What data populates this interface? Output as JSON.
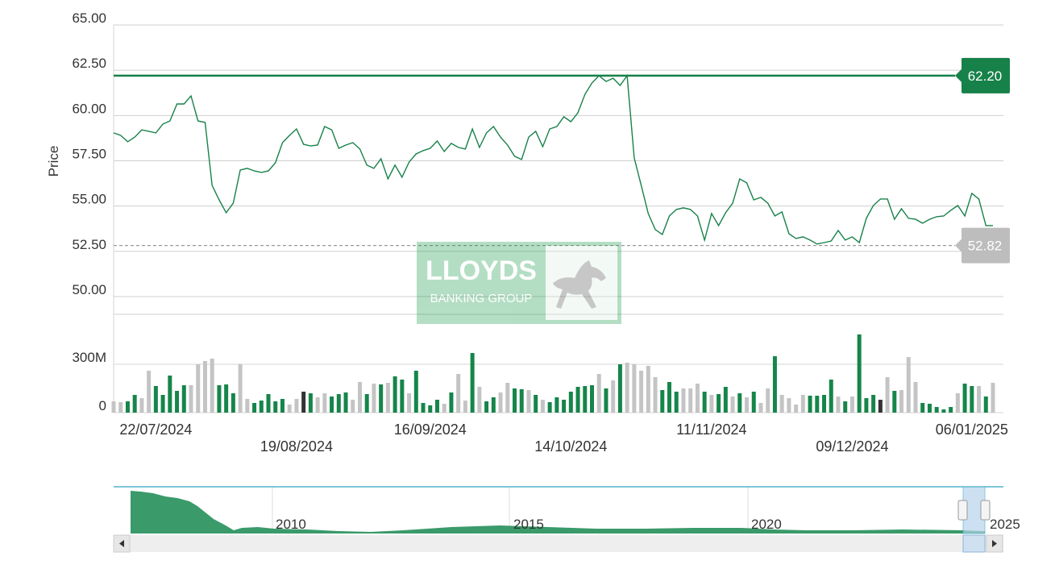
{
  "chart_data": {
    "type": "stock",
    "y_label": "Price",
    "categories": [
      null,
      null,
      null,
      null,
      null,
      null,
      "22/07/2024",
      null,
      null,
      null,
      null,
      null,
      null,
      null,
      null,
      null,
      null,
      null,
      null,
      null,
      null,
      null,
      null,
      null,
      null,
      null,
      "19/08/2024",
      null,
      null,
      null,
      null,
      null,
      null,
      null,
      null,
      null,
      null,
      null,
      null,
      null,
      null,
      null,
      null,
      null,
      null,
      "16/09/2024",
      null,
      null,
      null,
      null,
      null,
      null,
      null,
      null,
      null,
      null,
      null,
      null,
      null,
      null,
      null,
      null,
      null,
      null,
      null,
      "14/10/2024",
      null,
      null,
      null,
      null,
      null,
      null,
      null,
      null,
      null,
      null,
      null,
      null,
      null,
      null,
      null,
      null,
      null,
      null,
      null,
      "11/11/2024",
      null,
      null,
      null,
      null,
      null,
      null,
      null,
      null,
      null,
      null,
      null,
      null,
      null,
      null,
      null,
      null,
      null,
      null,
      null,
      "09/12/2024",
      null,
      null,
      null,
      null,
      null,
      null,
      null,
      null,
      null,
      null,
      null,
      null,
      null,
      null,
      null,
      null,
      "06/01/2025",
      null,
      null,
      null
    ],
    "values": [
      59.04,
      58.9,
      58.55,
      58.81,
      59.21,
      59.13,
      59.04,
      59.53,
      59.7,
      60.64,
      60.64,
      61.08,
      59.7,
      59.62,
      56.14,
      55.34,
      54.63,
      55.16,
      56.99,
      57.08,
      56.94,
      56.86,
      56.94,
      57.39,
      58.5,
      58.9,
      59.26,
      58.41,
      58.32,
      58.37,
      59.39,
      59.21,
      58.19,
      58.37,
      58.5,
      58.15,
      57.26,
      57.08,
      57.61,
      56.5,
      57.26,
      56.59,
      57.43,
      57.88,
      58.06,
      58.19,
      58.59,
      58.01,
      58.46,
      58.24,
      58.15,
      59.26,
      58.24,
      59.04,
      59.39,
      58.81,
      58.37,
      57.75,
      57.57,
      58.81,
      59.13,
      58.28,
      59.26,
      59.39,
      59.93,
      59.66,
      60.15,
      61.17,
      61.8,
      62.2,
      61.88,
      62.06,
      61.66,
      62.2,
      57.66,
      56.14,
      54.59,
      53.7,
      53.43,
      54.45,
      54.81,
      54.9,
      54.81,
      54.45,
      53.12,
      54.59,
      53.92,
      54.63,
      55.16,
      56.5,
      56.28,
      55.34,
      55.48,
      55.16,
      54.45,
      54.68,
      53.47,
      53.21,
      53.3,
      53.12,
      52.9,
      52.98,
      53.07,
      53.65,
      53.12,
      53.3,
      52.98,
      54.32,
      55.03,
      55.39,
      55.39,
      54.27,
      54.85,
      54.32,
      54.27,
      54.05,
      54.27,
      54.41,
      54.45,
      54.76,
      55.03,
      54.45,
      55.7,
      55.39,
      53.92,
      53.92
    ],
    "color": "#17814a",
    "ylim": [
      50,
      65
    ],
    "yticks": [
      {
        "value": 50,
        "label": "50.00"
      },
      {
        "value": 52.5,
        "label": "52.50"
      },
      {
        "value": 55,
        "label": "55.00"
      },
      {
        "value": 57.5,
        "label": "57.50"
      },
      {
        "value": 60,
        "label": "60.00"
      },
      {
        "value": 62.5,
        "label": "62.50"
      },
      {
        "value": 65,
        "label": "65.00"
      }
    ],
    "grid": true,
    "reference_lines": [
      {
        "value": 62.2,
        "label": "62.20",
        "color": "#17814a",
        "style": "solid"
      },
      {
        "value": 52.82,
        "label": "52.82",
        "color": "#bdbdbd",
        "style": "dashed"
      }
    ],
    "volume": {
      "values": [
        70,
        65,
        70,
        110,
        90,
        260,
        165,
        110,
        230,
        135,
        170,
        170,
        300,
        320,
        335,
        170,
        175,
        120,
        300,
        85,
        60,
        75,
        115,
        70,
        85,
        50,
        85,
        130,
        120,
        95,
        120,
        100,
        115,
        125,
        80,
        190,
        115,
        180,
        175,
        185,
        225,
        205,
        120,
        260,
        60,
        45,
        80,
        55,
        125,
        240,
        75,
        370,
        160,
        70,
        95,
        125,
        185,
        150,
        145,
        140,
        110,
        80,
        65,
        95,
        80,
        130,
        160,
        165,
        170,
        240,
        150,
        200,
        300,
        310,
        300,
        260,
        290,
        220,
        140,
        190,
        130,
        150,
        150,
        180,
        130,
        110,
        115,
        160,
        100,
        120,
        95,
        130,
        60,
        150,
        350,
        110,
        90,
        50,
        110,
        105,
        105,
        110,
        205,
        100,
        70,
        100,
        485,
        90,
        110,
        80,
        220,
        135,
        140,
        345,
        190,
        60,
        55,
        35,
        20,
        35,
        120,
        180,
        165,
        165,
        100,
        185
      ],
      "colors": [
        "#c4c4c4",
        "#c4c4c4",
        "#16854a",
        "#16854a",
        "#c4c4c4",
        "#c4c4c4",
        "#16854a",
        "#16854a",
        "#16854a",
        "#16854a",
        "#16854a",
        "#c4c4c4",
        "#c4c4c4",
        "#c4c4c4",
        "#c4c4c4",
        "#16854a",
        "#16854a",
        "#16854a",
        "#c4c4c4",
        "#c4c4c4",
        "#16854a",
        "#16854a",
        "#16854a",
        "#16854a",
        "#16854a",
        "#c4c4c4",
        "#c4c4c4",
        "#333333",
        "#16854a",
        "#c4c4c4",
        "#c4c4c4",
        "#16854a",
        "#16854a",
        "#16854a",
        "#c4c4c4",
        "#c4c4c4",
        "#16854a",
        "#c4c4c4",
        "#16854a",
        "#c4c4c4",
        "#16854a",
        "#16854a",
        "#c4c4c4",
        "#16854a",
        "#16854a",
        "#16854a",
        "#16854a",
        "#c4c4c4",
        "#16854a",
        "#c4c4c4",
        "#c4c4c4",
        "#16854a",
        "#c4c4c4",
        "#16854a",
        "#16854a",
        "#c4c4c4",
        "#c4c4c4",
        "#16854a",
        "#16854a",
        "#c4c4c4",
        "#16854a",
        "#c4c4c4",
        "#16854a",
        "#16854a",
        "#16854a",
        "#16854a",
        "#16854a",
        "#16854a",
        "#16854a",
        "#c4c4c4",
        "#16854a",
        "#c4c4c4",
        "#16854a",
        "#c4c4c4",
        "#c4c4c4",
        "#c4c4c4",
        "#c4c4c4",
        "#c4c4c4",
        "#16854a",
        "#16854a",
        "#16854a",
        "#c4c4c4",
        "#c4c4c4",
        "#c4c4c4",
        "#16854a",
        "#c4c4c4",
        "#16854a",
        "#16854a",
        "#c4c4c4",
        "#16854a",
        "#c4c4c4",
        "#16854a",
        "#c4c4c4",
        "#c4c4c4",
        "#16854a",
        "#c4c4c4",
        "#c4c4c4",
        "#c4c4c4",
        "#c4c4c4",
        "#16854a",
        "#16854a",
        "#16854a",
        "#16854a",
        "#c4c4c4",
        "#16854a",
        "#c4c4c4",
        "#16854a",
        "#16854a",
        "#16854a",
        "#333333",
        "#c4c4c4",
        "#16854a",
        "#c4c4c4",
        "#c4c4c4",
        "#c4c4c4",
        "#16854a",
        "#16854a",
        "#16854a",
        "#16854a",
        "#16854a",
        "#c4c4c4",
        "#16854a",
        "#16854a",
        "#c4c4c4",
        "#16854a",
        "#c4c4c4"
      ],
      "ylim": [
        0,
        600
      ],
      "yticks": [
        0,
        {
          "value": 300,
          "label": "300M"
        }
      ]
    },
    "navigator": {
      "labels": [
        "2010",
        "2015",
        "2020",
        "2025"
      ]
    },
    "watermark": {
      "title": "LLOYDS",
      "subtitle": "BANKING GROUP"
    }
  }
}
